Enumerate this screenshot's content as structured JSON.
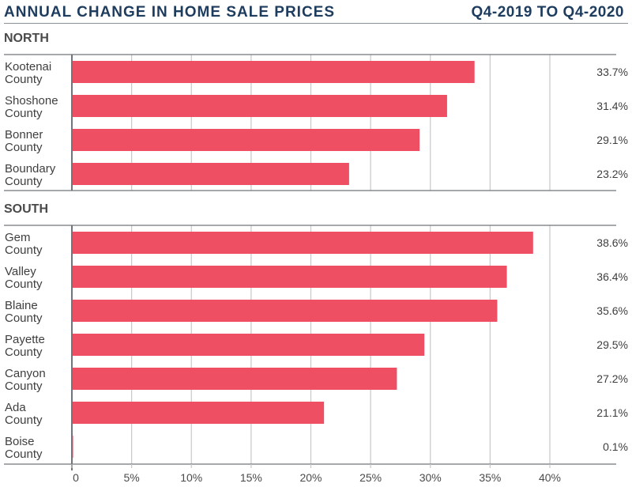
{
  "header": {
    "title": "ANNUAL CHANGE IN HOME SALE PRICES",
    "period": "Q4-2019 TO Q4-2020"
  },
  "colors": {
    "bar": "#ef4f62",
    "title": "#1d3c5e",
    "grid": "#c8c8c8",
    "axis": "#6f767b"
  },
  "chart_data": {
    "type": "bar",
    "orientation": "horizontal",
    "title": "Annual Change in Home Sale Prices",
    "subtitle": "Q4-2019 to Q4-2020",
    "xlabel": "",
    "ylabel": "",
    "xlim": [
      0,
      40
    ],
    "x_ticks": [
      "0",
      "5%",
      "10%",
      "15%",
      "20%",
      "25%",
      "30%",
      "35%",
      "40%"
    ],
    "x_tick_values": [
      0,
      5,
      10,
      15,
      20,
      25,
      30,
      35,
      40
    ],
    "grid": true,
    "groups": [
      {
        "name": "NORTH",
        "categories": [
          [
            "Kootenai",
            "County"
          ],
          [
            "Shoshone",
            "County"
          ],
          [
            "Bonner",
            "County"
          ],
          [
            "Boundary",
            "County"
          ]
        ],
        "values": [
          33.7,
          31.4,
          29.1,
          23.2
        ],
        "labels": [
          "33.7%",
          "31.4%",
          "29.1%",
          "23.2%"
        ]
      },
      {
        "name": "SOUTH",
        "categories": [
          [
            "Gem",
            "County"
          ],
          [
            "Valley",
            "County"
          ],
          [
            "Blaine",
            "County"
          ],
          [
            "Payette",
            "County"
          ],
          [
            "Canyon",
            "County"
          ],
          [
            "Ada",
            "County"
          ],
          [
            "Boise",
            "County"
          ]
        ],
        "values": [
          38.6,
          36.4,
          35.6,
          29.5,
          27.2,
          21.1,
          0.1
        ],
        "labels": [
          "38.6%",
          "36.4%",
          "35.6%",
          "29.5%",
          "27.2%",
          "21.1%",
          "0.1%"
        ]
      }
    ]
  }
}
